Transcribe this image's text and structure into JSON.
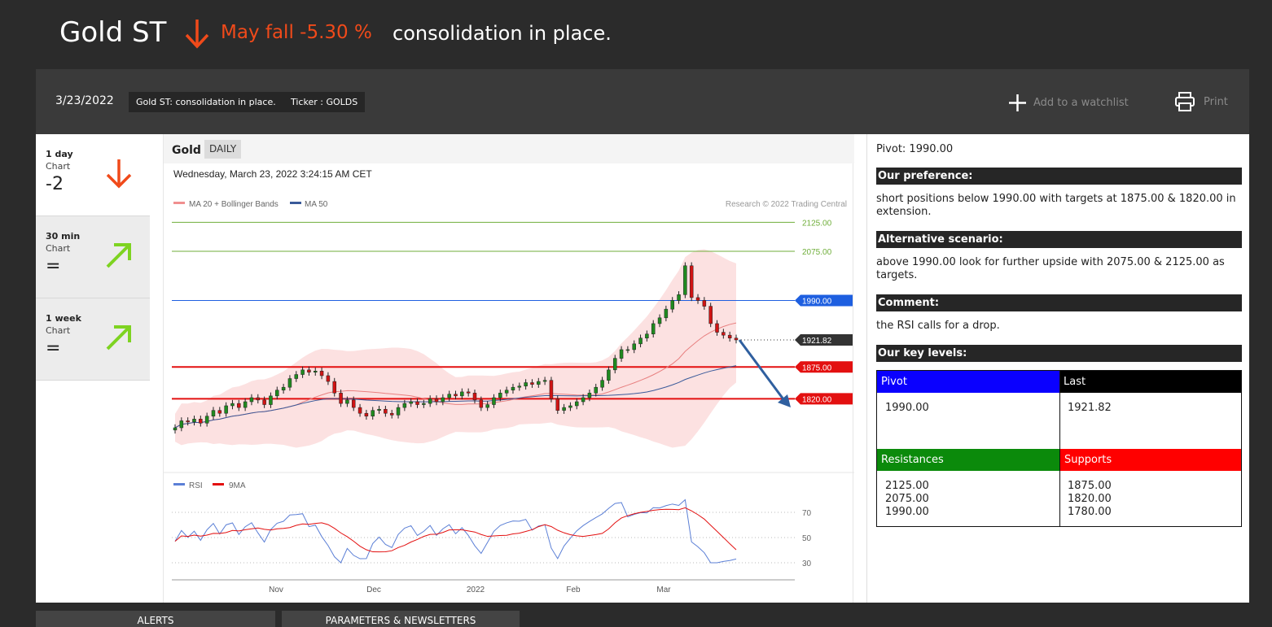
{
  "header": {
    "title": "Gold ST",
    "fall_text": "May fall -5.30 %",
    "headline": "consolidation in place.",
    "accent_color": "#f04a1a"
  },
  "toolbar": {
    "date": "3/23/2022",
    "tag_title": "Gold ST: consolidation in place.",
    "tag_ticker": "Ticker : GOLDS",
    "watchlist_label": "Add to a watchlist",
    "print_label": "Print"
  },
  "timeframes": [
    {
      "label": "1 day",
      "chart": "Chart",
      "value": "-2",
      "icon": "arrow-down-icon"
    },
    {
      "label": "30 min",
      "chart": "Chart",
      "value": "=",
      "icon": "arrow-up-right-icon"
    },
    {
      "label": "1 week",
      "chart": "Chart",
      "value": "=",
      "icon": "arrow-up-right-icon"
    }
  ],
  "chart": {
    "name": "Gold",
    "period": "DAILY",
    "timestamp": "Wednesday, March 23, 2022 3:24:15 AM CET",
    "legend_ma20": "MA 20 + Bollinger Bands",
    "legend_ma50": "MA 50",
    "credit": "Research © 2022 Trading Central",
    "legend_rsi": "RSI",
    "legend_9ma": "9MA"
  },
  "chart_data": {
    "type": "line",
    "x_ticks": [
      "Nov",
      "Dec",
      "2022",
      "Feb",
      "Mar"
    ],
    "levels": [
      {
        "label": "2125.00",
        "value": 2125.0,
        "color": "#6fae3a",
        "kind": "target"
      },
      {
        "label": "2075.00",
        "value": 2075.0,
        "color": "#6fae3a",
        "kind": "target"
      },
      {
        "label": "1990.00",
        "value": 1990.0,
        "color": "#1e5fe0",
        "kind": "pivot"
      },
      {
        "label": "1921.82",
        "value": 1921.82,
        "color": "#333333",
        "kind": "last"
      },
      {
        "label": "1875.00",
        "value": 1875.0,
        "color": "#e31010",
        "kind": "support"
      },
      {
        "label": "1820.00",
        "value": 1820.0,
        "color": "#e31010",
        "kind": "support"
      }
    ],
    "price": [
      1770,
      1782,
      1780,
      1785,
      1778,
      1790,
      1800,
      1795,
      1808,
      1812,
      1805,
      1815,
      1822,
      1818,
      1810,
      1825,
      1835,
      1840,
      1855,
      1862,
      1870,
      1866,
      1868,
      1860,
      1850,
      1830,
      1812,
      1818,
      1805,
      1795,
      1790,
      1800,
      1802,
      1795,
      1792,
      1805,
      1812,
      1815,
      1810,
      1812,
      1820,
      1815,
      1822,
      1828,
      1825,
      1832,
      1830,
      1818,
      1805,
      1810,
      1822,
      1830,
      1835,
      1840,
      1842,
      1848,
      1845,
      1850,
      1852,
      1820,
      1800,
      1805,
      1808,
      1815,
      1822,
      1830,
      1840,
      1852,
      1870,
      1890,
      1905,
      1905,
      1915,
      1925,
      1932,
      1950,
      1960,
      1975,
      1990,
      2000,
      2050,
      1995,
      1990,
      1980,
      1950,
      1935,
      1930,
      1925,
      1921.82
    ],
    "rsi_axis_ticks": [
      30,
      50,
      70
    ]
  },
  "analysis": {
    "pivot_line": "Pivot: 1990.00",
    "preference_title": "Our preference:",
    "preference_text": "short positions below 1990.00 with targets at 1875.00 & 1820.00 in extension.",
    "alternative_title": "Alternative scenario:",
    "alternative_text": "above 1990.00 look for further upside with 2075.00 & 2125.00 as targets.",
    "comment_title": "Comment:",
    "comment_text": "the RSI calls for a drop.",
    "levels_title": "Our key levels:",
    "pivot_header": "Pivot",
    "last_header": "Last",
    "pivot_value": "1990.00",
    "last_value": "1921.82",
    "resistances_header": "Resistances",
    "supports_header": "Supports",
    "resistances": [
      "2125.00",
      "2075.00",
      "1990.00"
    ],
    "supports": [
      "1875.00",
      "1820.00",
      "1780.00"
    ]
  },
  "bottom_tabs": [
    "ALERTS",
    "PARAMETERS & NEWSLETTERS"
  ]
}
